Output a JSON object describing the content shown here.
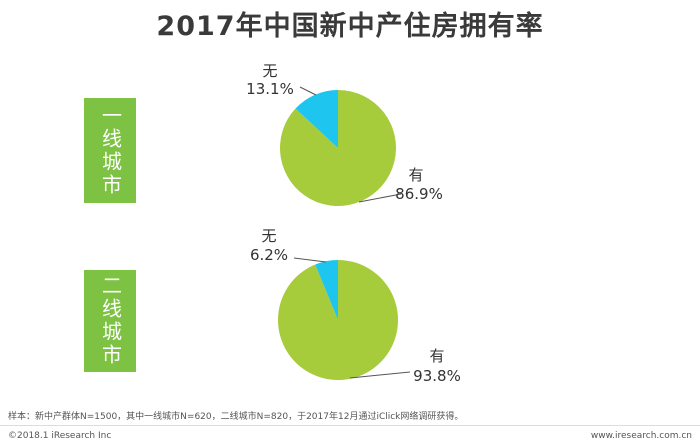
{
  "title": "2017年中国新中产住房拥有率",
  "chart_data": [
    {
      "type": "pie",
      "group_label": "一线城市",
      "slices": [
        {
          "label": "有",
          "value": 86.9,
          "display": "86.9%",
          "color": "#a6cb3b"
        },
        {
          "label": "无",
          "value": 13.1,
          "display": "13.1%",
          "color": "#1ec5ef"
        }
      ]
    },
    {
      "type": "pie",
      "group_label": "二线城市",
      "slices": [
        {
          "label": "有",
          "value": 93.8,
          "display": "93.8%",
          "color": "#a6cb3b"
        },
        {
          "label": "无",
          "value": 6.2,
          "display": "6.2%",
          "color": "#1ec5ef"
        }
      ]
    }
  ],
  "footer": {
    "note": "样本：新中产群体N=1500，其中一线城市N=620，二线城市N=820，于2017年12月通过iClick网络调研获得。",
    "copyright": "©2018.1 iResearch Inc",
    "website": "www.iresearch.com.cn"
  }
}
